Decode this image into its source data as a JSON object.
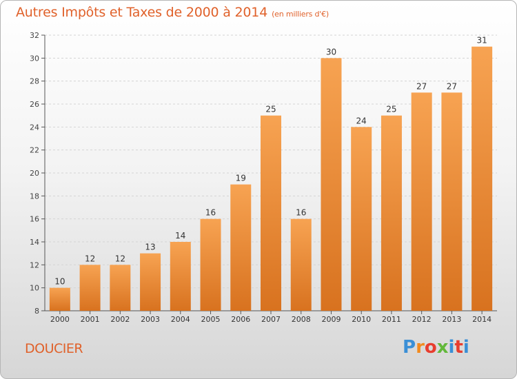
{
  "header": {
    "title": "Autres Impôts et Taxes de 2000 à 2014",
    "subtitle": "(en milliers d'€)"
  },
  "footer": {
    "commune": "DOUCIER",
    "logo_text": "Proxiti"
  },
  "colors": {
    "bar_light": "#f7a352",
    "bar_dark": "#d8721f",
    "title": "#e0612a",
    "logo": [
      "#3a8fd6",
      "#f28a1e",
      "#e83d2e",
      "#62b83a",
      "#3a8fd6",
      "#e83d2e",
      "#3a8fd6"
    ]
  },
  "chart_data": {
    "type": "bar",
    "title": "Autres Impôts et Taxes de 2000 à 2014",
    "subtitle": "(en milliers d'€)",
    "categories": [
      "2000",
      "2001",
      "2002",
      "2003",
      "2004",
      "2005",
      "2006",
      "2007",
      "2008",
      "2009",
      "2010",
      "2011",
      "2012",
      "2013",
      "2014"
    ],
    "values": [
      10,
      12,
      12,
      13,
      14,
      16,
      19,
      25,
      16,
      30,
      24,
      25,
      27,
      27,
      31
    ],
    "ylim": [
      8,
      32
    ],
    "yticks": [
      8,
      10,
      12,
      14,
      16,
      18,
      20,
      22,
      24,
      26,
      28,
      30,
      32
    ],
    "grid": true,
    "data_labels": true
  }
}
